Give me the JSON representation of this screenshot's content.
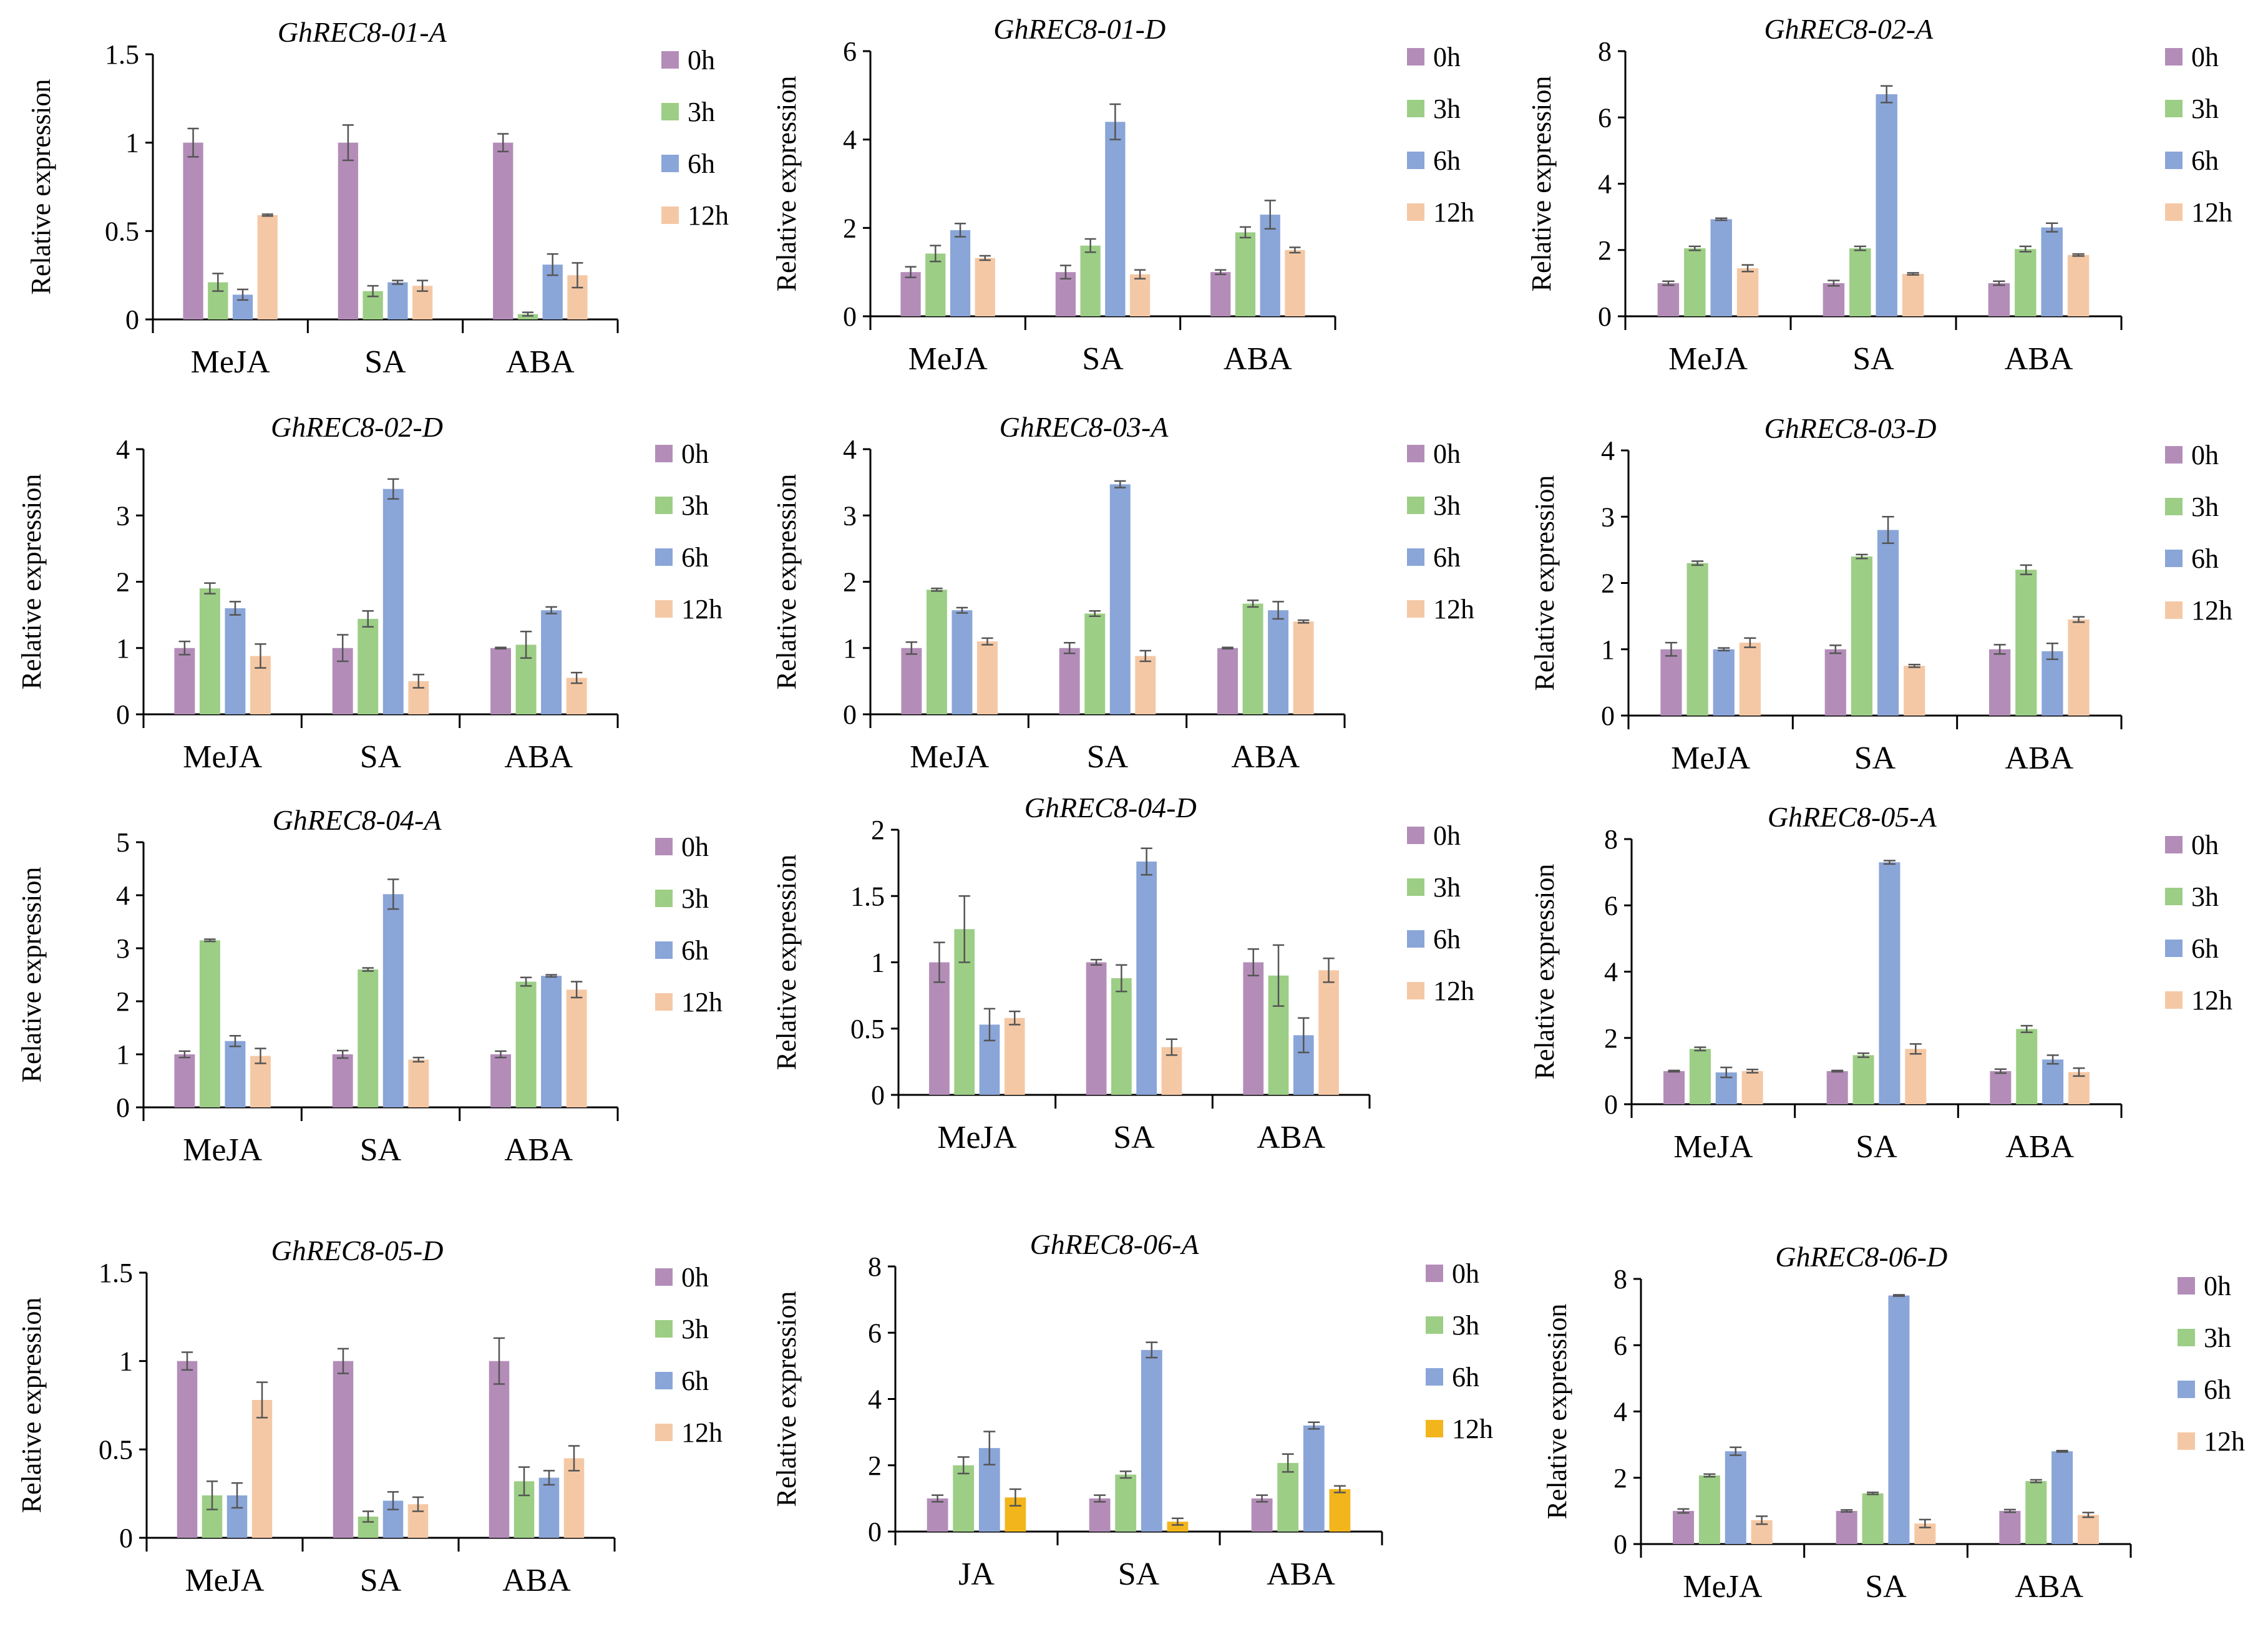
{
  "figure": {
    "series_names": [
      "0h",
      "3h",
      "6h",
      "12h"
    ],
    "colors": {
      "0h": "#b38db8",
      "3h": "#9cce85",
      "6h": "#8aa5d8",
      "12h": "#f5c8a5",
      "12h_alt": "#f2b51c",
      "error_bar": "#555555",
      "axis": "#000000"
    }
  },
  "chart_data": [
    {
      "type": "bar",
      "title": "GhREC8-01-A",
      "ylabel": "Relative expression",
      "xlabel": "",
      "categories": [
        "MeJA",
        "SA",
        "ABA"
      ],
      "ylim": [
        0,
        1.5
      ],
      "yticks": [
        "0",
        "0.5",
        "1",
        "1.5"
      ],
      "series": [
        {
          "name": "0h",
          "values": [
            1.0,
            1.0,
            1.0
          ],
          "errors": [
            0.08,
            0.1,
            0.05
          ]
        },
        {
          "name": "3h",
          "values": [
            0.21,
            0.16,
            0.03
          ],
          "errors": [
            0.05,
            0.03,
            0.01
          ]
        },
        {
          "name": "6h",
          "values": [
            0.14,
            0.21,
            0.31
          ],
          "errors": [
            0.03,
            0.01,
            0.06
          ]
        },
        {
          "name": "12h",
          "values": [
            0.59,
            0.19,
            0.25
          ],
          "errors": [
            0.005,
            0.03,
            0.07
          ]
        }
      ]
    },
    {
      "type": "bar",
      "title": "GhREC8-01-D",
      "ylabel": "Relative expression",
      "xlabel": "",
      "categories": [
        "MeJA",
        "SA",
        "ABA"
      ],
      "ylim": [
        0,
        6
      ],
      "yticks": [
        "0",
        "2",
        "4",
        "6"
      ],
      "series": [
        {
          "name": "0h",
          "values": [
            1.0,
            1.0,
            1.0
          ],
          "errors": [
            0.12,
            0.15,
            0.05
          ]
        },
        {
          "name": "3h",
          "values": [
            1.42,
            1.6,
            1.9
          ],
          "errors": [
            0.18,
            0.15,
            0.12
          ]
        },
        {
          "name": "6h",
          "values": [
            1.95,
            4.4,
            2.3
          ],
          "errors": [
            0.15,
            0.4,
            0.32
          ]
        },
        {
          "name": "12h",
          "values": [
            1.32,
            0.95,
            1.5
          ],
          "errors": [
            0.05,
            0.1,
            0.06
          ]
        }
      ]
    },
    {
      "type": "bar",
      "title": "GhREC8-02-A",
      "ylabel": "Relative  expression",
      "xlabel": "",
      "categories": [
        "MeJA",
        "SA",
        "ABA"
      ],
      "ylim": [
        0,
        8
      ],
      "yticks": [
        "0",
        "2",
        "4",
        "6",
        "8"
      ],
      "series": [
        {
          "name": "0h",
          "values": [
            1.0,
            1.0,
            1.0
          ],
          "errors": [
            0.06,
            0.08,
            0.06
          ]
        },
        {
          "name": "3h",
          "values": [
            2.05,
            2.05,
            2.03
          ],
          "errors": [
            0.06,
            0.06,
            0.08
          ]
        },
        {
          "name": "6h",
          "values": [
            2.93,
            6.7,
            2.68
          ],
          "errors": [
            0.03,
            0.25,
            0.13
          ]
        },
        {
          "name": "12h",
          "values": [
            1.45,
            1.28,
            1.85
          ],
          "errors": [
            0.1,
            0.03,
            0.03
          ]
        }
      ]
    },
    {
      "type": "bar",
      "title": "GhREC8-02-D",
      "ylabel": "Relative expression",
      "xlabel": "",
      "categories": [
        "MeJA",
        "SA",
        "ABA"
      ],
      "ylim": [
        0,
        4
      ],
      "yticks": [
        "0",
        "1",
        "2",
        "3",
        "4"
      ],
      "series": [
        {
          "name": "0h",
          "values": [
            1.0,
            1.0,
            1.0
          ],
          "errors": [
            0.1,
            0.2,
            0.01
          ]
        },
        {
          "name": "3h",
          "values": [
            1.9,
            1.44,
            1.05
          ],
          "errors": [
            0.08,
            0.12,
            0.2
          ]
        },
        {
          "name": "6h",
          "values": [
            1.6,
            3.4,
            1.57
          ],
          "errors": [
            0.1,
            0.15,
            0.05
          ]
        },
        {
          "name": "12h",
          "values": [
            0.88,
            0.5,
            0.55
          ],
          "errors": [
            0.18,
            0.1,
            0.08
          ]
        }
      ]
    },
    {
      "type": "bar",
      "title": "GhREC8-03-A",
      "ylabel": "Relative expression",
      "xlabel": "",
      "categories": [
        "MeJA",
        "SA",
        "ABA"
      ],
      "ylim": [
        0,
        4
      ],
      "yticks": [
        "0",
        "1",
        "2",
        "3",
        "4"
      ],
      "series": [
        {
          "name": "0h",
          "values": [
            1.0,
            1.0,
            1.0
          ],
          "errors": [
            0.09,
            0.08,
            0.01
          ]
        },
        {
          "name": "3h",
          "values": [
            1.88,
            1.52,
            1.67
          ],
          "errors": [
            0.02,
            0.04,
            0.05
          ]
        },
        {
          "name": "6h",
          "values": [
            1.57,
            3.47,
            1.57
          ],
          "errors": [
            0.04,
            0.05,
            0.13
          ]
        },
        {
          "name": "12h",
          "values": [
            1.1,
            0.88,
            1.4
          ],
          "errors": [
            0.05,
            0.08,
            0.02
          ]
        }
      ]
    },
    {
      "type": "bar",
      "title": "GhREC8-03-D",
      "ylabel": "Relative expression",
      "xlabel": "",
      "categories": [
        "MeJA",
        "SA",
        "ABA"
      ],
      "ylim": [
        0,
        4
      ],
      "yticks": [
        "0",
        "1",
        "2",
        "3",
        "4"
      ],
      "series": [
        {
          "name": "0h",
          "values": [
            1.0,
            1.0,
            1.0
          ],
          "errors": [
            0.1,
            0.06,
            0.07
          ]
        },
        {
          "name": "3h",
          "values": [
            2.3,
            2.4,
            2.2
          ],
          "errors": [
            0.03,
            0.03,
            0.07
          ]
        },
        {
          "name": "6h",
          "values": [
            1.0,
            2.8,
            0.97
          ],
          "errors": [
            0.02,
            0.2,
            0.12
          ]
        },
        {
          "name": "12h",
          "values": [
            1.1,
            0.75,
            1.45
          ],
          "errors": [
            0.07,
            0.02,
            0.04
          ]
        }
      ]
    },
    {
      "type": "bar",
      "title": "GhREC8-04-A",
      "ylabel": "Relative expression",
      "xlabel": "",
      "categories": [
        "MeJA",
        "SA",
        "ABA"
      ],
      "ylim": [
        0,
        5
      ],
      "yticks": [
        "0",
        "1",
        "2",
        "3",
        "4",
        "5"
      ],
      "series": [
        {
          "name": "0h",
          "values": [
            1.0,
            1.0,
            1.0
          ],
          "errors": [
            0.06,
            0.07,
            0.06
          ]
        },
        {
          "name": "3h",
          "values": [
            3.15,
            2.6,
            2.37
          ],
          "errors": [
            0.02,
            0.03,
            0.08
          ]
        },
        {
          "name": "6h",
          "values": [
            1.25,
            4.02,
            2.48
          ],
          "errors": [
            0.1,
            0.28,
            0.02
          ]
        },
        {
          "name": "12h",
          "values": [
            0.97,
            0.9,
            2.22
          ],
          "errors": [
            0.14,
            0.04,
            0.15
          ]
        }
      ]
    },
    {
      "type": "bar",
      "title": "GhREC8-04-D",
      "ylabel": "Relative expression",
      "xlabel": "",
      "categories": [
        "MeJA",
        "SA",
        "ABA"
      ],
      "ylim": [
        0,
        2
      ],
      "yticks": [
        "0",
        "0.5",
        "1",
        "1.5",
        "2"
      ],
      "series": [
        {
          "name": "0h",
          "values": [
            1.0,
            1.0,
            1.0
          ],
          "errors": [
            0.15,
            0.02,
            0.1
          ]
        },
        {
          "name": "3h",
          "values": [
            1.25,
            0.88,
            0.9
          ],
          "errors": [
            0.25,
            0.1,
            0.23
          ]
        },
        {
          "name": "6h",
          "values": [
            0.53,
            1.76,
            0.45
          ],
          "errors": [
            0.12,
            0.1,
            0.13
          ]
        },
        {
          "name": "12h",
          "values": [
            0.58,
            0.36,
            0.94
          ],
          "errors": [
            0.05,
            0.06,
            0.09
          ]
        }
      ]
    },
    {
      "type": "bar",
      "title": "GhREC8-05-A",
      "ylabel": "Relative expression",
      "xlabel": "",
      "categories": [
        "MeJA",
        "SA",
        "ABA"
      ],
      "ylim": [
        0,
        8
      ],
      "yticks": [
        "0",
        "2",
        "4",
        "6",
        "8"
      ],
      "series": [
        {
          "name": "0h",
          "values": [
            1.0,
            1.0,
            1.0
          ],
          "errors": [
            0.02,
            0.02,
            0.06
          ]
        },
        {
          "name": "3h",
          "values": [
            1.67,
            1.48,
            2.27
          ],
          "errors": [
            0.05,
            0.06,
            0.1
          ]
        },
        {
          "name": "6h",
          "values": [
            0.96,
            7.3,
            1.35
          ],
          "errors": [
            0.15,
            0.05,
            0.13
          ]
        },
        {
          "name": "12h",
          "values": [
            1.0,
            1.67,
            0.97
          ],
          "errors": [
            0.05,
            0.15,
            0.12
          ]
        }
      ]
    },
    {
      "type": "bar",
      "title": "GhREC8-05-D",
      "ylabel": "Relative expression",
      "xlabel": "",
      "categories": [
        "MeJA",
        "SA",
        "ABA"
      ],
      "ylim": [
        0,
        1.5
      ],
      "yticks": [
        "0",
        "0.5",
        "1",
        "1.5"
      ],
      "series": [
        {
          "name": "0h",
          "values": [
            1.0,
            1.0,
            1.0
          ],
          "errors": [
            0.05,
            0.07,
            0.13
          ]
        },
        {
          "name": "3h",
          "values": [
            0.24,
            0.12,
            0.32
          ],
          "errors": [
            0.08,
            0.03,
            0.08
          ]
        },
        {
          "name": "6h",
          "values": [
            0.24,
            0.21,
            0.34
          ],
          "errors": [
            0.07,
            0.05,
            0.04
          ]
        },
        {
          "name": "12h",
          "values": [
            0.78,
            0.19,
            0.45
          ],
          "errors": [
            0.1,
            0.04,
            0.07
          ]
        }
      ]
    },
    {
      "type": "bar",
      "title": "GhREC8-06-A",
      "ylabel": "Relative expression",
      "xlabel": "",
      "categories": [
        "JA",
        "SA",
        "ABA"
      ],
      "ylim": [
        0,
        8
      ],
      "yticks": [
        "0",
        "2",
        "4",
        "6",
        "8"
      ],
      "alt_12h_color": true,
      "series": [
        {
          "name": "0h",
          "values": [
            1.0,
            1.0,
            1.0
          ],
          "errors": [
            0.1,
            0.1,
            0.1
          ]
        },
        {
          "name": "3h",
          "values": [
            2.0,
            1.72,
            2.07
          ],
          "errors": [
            0.25,
            0.1,
            0.27
          ]
        },
        {
          "name": "6h",
          "values": [
            2.52,
            5.48,
            3.2
          ],
          "errors": [
            0.5,
            0.23,
            0.1
          ]
        },
        {
          "name": "12h",
          "values": [
            1.03,
            0.3,
            1.28
          ],
          "errors": [
            0.25,
            0.1,
            0.1
          ]
        }
      ]
    },
    {
      "type": "bar",
      "title": "GhREC8-06-D",
      "ylabel": "Relative expression",
      "xlabel": "",
      "categories": [
        "MeJA",
        "SA",
        "ABA"
      ],
      "ylim": [
        0,
        8
      ],
      "yticks": [
        "0",
        "2",
        "4",
        "6",
        "8"
      ],
      "series": [
        {
          "name": "0h",
          "values": [
            1.0,
            1.0,
            1.0
          ],
          "errors": [
            0.06,
            0.03,
            0.04
          ]
        },
        {
          "name": "3h",
          "values": [
            2.07,
            1.53,
            1.9
          ],
          "errors": [
            0.04,
            0.03,
            0.04
          ]
        },
        {
          "name": "6h",
          "values": [
            2.8,
            7.5,
            2.8
          ],
          "errors": [
            0.12,
            0.02,
            0.02
          ]
        },
        {
          "name": "12h",
          "values": [
            0.72,
            0.62,
            0.88
          ],
          "errors": [
            0.12,
            0.12,
            0.07
          ]
        }
      ]
    }
  ]
}
